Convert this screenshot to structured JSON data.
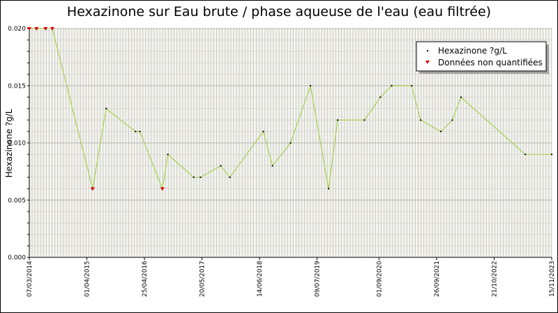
{
  "chart_data": {
    "type": "line",
    "title": "Hexazinone sur Eau brute / phase aqueuse de l'eau (eau filtrée)",
    "ylabel": "Hexazinone ?g/L",
    "xlabel": "",
    "ylim": [
      0,
      0.02
    ],
    "y_ticks": [
      "0.000",
      "0.005",
      "0.010",
      "0.015",
      "0.020"
    ],
    "x_range": [
      "2014-03-07",
      "2023-11-15"
    ],
    "x_ticks": [
      {
        "date": "2014-03-07",
        "label": "07/03/2014"
      },
      {
        "date": "2015-04-01",
        "label": "01/04/2015"
      },
      {
        "date": "2016-04-25",
        "label": "25/04/2016"
      },
      {
        "date": "2017-05-20",
        "label": "20/05/2017"
      },
      {
        "date": "2018-06-14",
        "label": "14/06/2018"
      },
      {
        "date": "2019-07-09",
        "label": "09/07/2019"
      },
      {
        "date": "2020-09-01",
        "label": "01/09/2020"
      },
      {
        "date": "2021-09-26",
        "label": "26/09/2021"
      },
      {
        "date": "2022-10-21",
        "label": "21/10/2022"
      },
      {
        "date": "2023-11-15",
        "label": "15/11/2023"
      }
    ],
    "grid": true,
    "legend_position": "top-right",
    "series": [
      {
        "name": "Hexazinone ?g/L",
        "line_color": "#99cc33",
        "marker_color": "#000000",
        "points": [
          {
            "x": "2014-03-07",
            "y": 0.02
          },
          {
            "x": "2014-04-25",
            "y": 0.02
          },
          {
            "x": "2014-06-25",
            "y": 0.02
          },
          {
            "x": "2014-08-10",
            "y": 0.02
          },
          {
            "x": "2015-05-10",
            "y": 0.006
          },
          {
            "x": "2015-08-10",
            "y": 0.013
          },
          {
            "x": "2016-02-25",
            "y": 0.011
          },
          {
            "x": "2016-03-25",
            "y": 0.011
          },
          {
            "x": "2016-08-25",
            "y": 0.006
          },
          {
            "x": "2016-10-01",
            "y": 0.009
          },
          {
            "x": "2017-03-25",
            "y": 0.007
          },
          {
            "x": "2017-05-10",
            "y": 0.007
          },
          {
            "x": "2017-09-25",
            "y": 0.008
          },
          {
            "x": "2017-11-25",
            "y": 0.007
          },
          {
            "x": "2018-07-10",
            "y": 0.011
          },
          {
            "x": "2018-09-10",
            "y": 0.008
          },
          {
            "x": "2019-01-10",
            "y": 0.01
          },
          {
            "x": "2019-05-25",
            "y": 0.015
          },
          {
            "x": "2019-09-25",
            "y": 0.006
          },
          {
            "x": "2019-11-25",
            "y": 0.012
          },
          {
            "x": "2020-05-25",
            "y": 0.012
          },
          {
            "x": "2020-09-10",
            "y": 0.014
          },
          {
            "x": "2020-11-25",
            "y": 0.015
          },
          {
            "x": "2021-04-10",
            "y": 0.015
          },
          {
            "x": "2021-06-10",
            "y": 0.012
          },
          {
            "x": "2021-10-25",
            "y": 0.011
          },
          {
            "x": "2022-01-10",
            "y": 0.012
          },
          {
            "x": "2022-03-10",
            "y": 0.014
          },
          {
            "x": "2023-05-20",
            "y": 0.009
          },
          {
            "x": "2023-11-15",
            "y": 0.009
          }
        ]
      },
      {
        "name": "Données non quantifiées",
        "marker_color": "#dd0000",
        "points": [
          {
            "x": "2014-03-07",
            "y": 0.02
          },
          {
            "x": "2014-04-25",
            "y": 0.02
          },
          {
            "x": "2014-06-25",
            "y": 0.02
          },
          {
            "x": "2014-08-10",
            "y": 0.02
          },
          {
            "x": "2015-05-10",
            "y": 0.006
          },
          {
            "x": "2016-08-25",
            "y": 0.006
          }
        ]
      }
    ]
  }
}
